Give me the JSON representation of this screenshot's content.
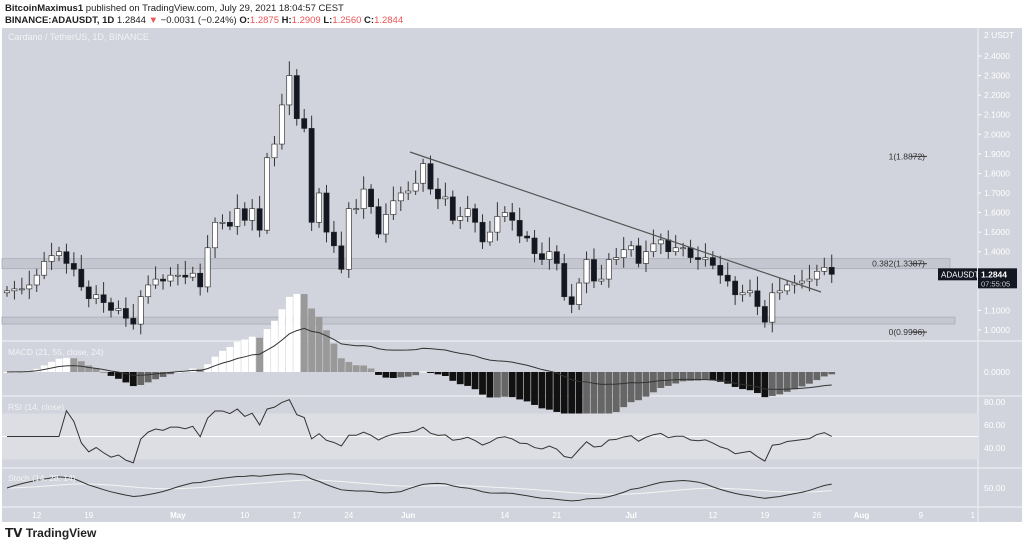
{
  "header": {
    "author": "BitcoinMaximus1",
    "published": "published on TradingView.com, July 29, 2021 18:04:57 CEST",
    "symbol": "BINANCE:ADAUSDT, 1D",
    "last": "1.2844",
    "change": "−0.0031 (−0.24%)",
    "o_label": "O:",
    "o": "1.2875",
    "h_label": "H:",
    "h": "1.2909",
    "l_label": "L:",
    "l": "1.2560",
    "c_label": "C:",
    "c": "1.2844"
  },
  "footer": {
    "brand": "TradingView"
  },
  "chart_data": {
    "type": "candlestick",
    "title": "Cardano / TetherUS, 1D, BINANCE",
    "currency": "USDT",
    "y_ticks": [
      "2.4000",
      "2.3000",
      "2.2000",
      "2.1000",
      "2.0000",
      "1.9000",
      "1.8000",
      "1.7000",
      "1.6000",
      "1.5000",
      "1.4000",
      "1.1000",
      "1.0000"
    ],
    "y_tick_values": [
      2.4,
      2.3,
      2.2,
      2.1,
      2.0,
      1.9,
      1.8,
      1.7,
      1.6,
      1.5,
      1.4,
      1.1,
      1.0
    ],
    "ylim": [
      0.96,
      2.55
    ],
    "x_ticks": [
      "12",
      "19",
      "May",
      "10",
      "17",
      "24",
      "Jun",
      "14",
      "21",
      "Jul",
      "12",
      "19",
      "26",
      "Aug",
      "9",
      "1"
    ],
    "x_tick_day_index": [
      4,
      11,
      23,
      32,
      39,
      46,
      54,
      67,
      74,
      84,
      95,
      102,
      109,
      115,
      123,
      130
    ],
    "closes": [
      1.2,
      1.21,
      1.21,
      1.23,
      1.28,
      1.35,
      1.38,
      1.4,
      1.34,
      1.31,
      1.22,
      1.16,
      1.18,
      1.14,
      1.1,
      1.11,
      1.06,
      1.03,
      1.17,
      1.23,
      1.26,
      1.25,
      1.28,
      1.28,
      1.27,
      1.29,
      1.22,
      1.42,
      1.55,
      1.55,
      1.53,
      1.62,
      1.56,
      1.62,
      1.51,
      1.88,
      1.95,
      2.15,
      2.3,
      2.08,
      2.03,
      1.55,
      1.7,
      1.5,
      1.43,
      1.31,
      1.62,
      1.62,
      1.72,
      1.63,
      1.49,
      1.59,
      1.66,
      1.7,
      1.71,
      1.75,
      1.85,
      1.72,
      1.67,
      1.68,
      1.56,
      1.58,
      1.62,
      1.55,
      1.45,
      1.5,
      1.58,
      1.6,
      1.56,
      1.48,
      1.47,
      1.39,
      1.36,
      1.4,
      1.34,
      1.17,
      1.13,
      1.24,
      1.36,
      1.25,
      1.26,
      1.36,
      1.37,
      1.41,
      1.43,
      1.34,
      1.4,
      1.44,
      1.46,
      1.4,
      1.42,
      1.42,
      1.37,
      1.36,
      1.37,
      1.33,
      1.28,
      1.25,
      1.18,
      1.19,
      1.2,
      1.12,
      1.04,
      1.19,
      1.2,
      1.23,
      1.24,
      1.25,
      1.26,
      1.3,
      1.32,
      1.2844
    ],
    "fib": [
      {
        "label": "1(1.8872)",
        "value": 1.8872
      },
      {
        "label": "0.382(1.3387)",
        "value": 1.3387
      },
      {
        "label": "0(0.9996)",
        "value": 0.9996
      }
    ],
    "last_price_tag": {
      "symbol": "ADAUSDT",
      "price": "1.2844",
      "countdown": "07:55:05"
    },
    "indicators": [
      {
        "name": "MACD (21, 55, close, 24)",
        "ticks": [
          "0.0000"
        ]
      },
      {
        "name": "RSI (14, close)",
        "ticks": [
          "80.00",
          "60.00",
          "40.00"
        ]
      },
      {
        "name": "Stoch (14, 28, 14)",
        "ticks": [
          "50.00"
        ]
      }
    ],
    "colors": {
      "bg": "#d1d4dc",
      "up": "#ffffff",
      "down": "#131722",
      "line": "#555555",
      "axis": "#ffffff"
    }
  }
}
